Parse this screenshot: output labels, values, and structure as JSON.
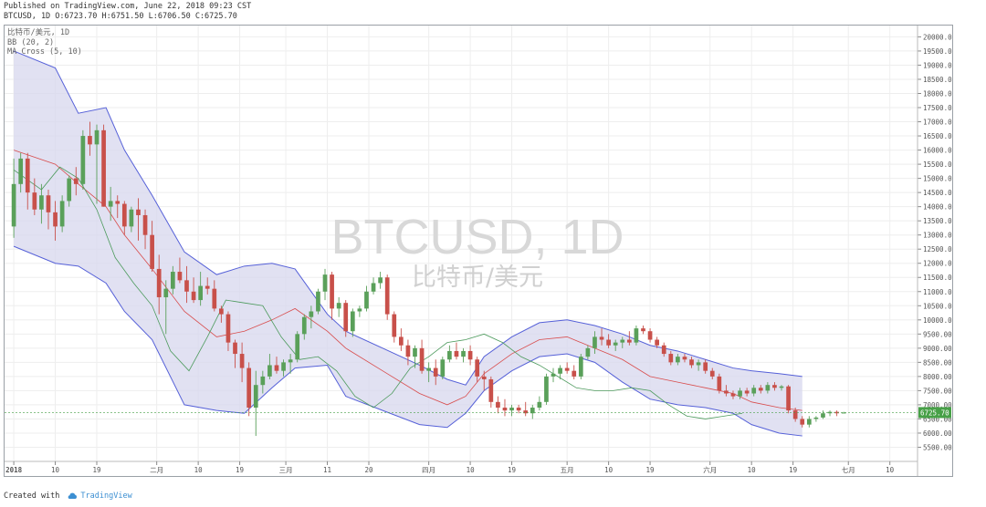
{
  "header": {
    "line1": "Published on TradingView.com, June 22, 2018 09:23 CST",
    "line2": "BTCUSD, 1D O:6723.70 H:6751.50 L:6706.50 C:6725.70"
  },
  "legend": {
    "title": "比特币/美元, 1D",
    "bb": "BB (20, 2)",
    "ma": "MA Cross (5, 10)"
  },
  "watermark": {
    "symbol": "BTCUSD, 1D",
    "name": "比特币/美元"
  },
  "footer": {
    "created_with": "Created with",
    "brand": "TradingView"
  },
  "colors": {
    "up": "#5aa05a",
    "down": "#c8504a",
    "band_fill": "#d7d7ee",
    "band_line": "#5560d8",
    "mid_line": "#d84c4c",
    "ma_fast": "#4c9a5c",
    "last_price": "#47a047"
  },
  "chart_data": {
    "type": "candlestick",
    "y_range": [
      5000,
      20400
    ],
    "y_ticks": [
      5500,
      6000,
      6500,
      7000,
      7500,
      8000,
      8500,
      9000,
      9500,
      10000,
      10500,
      11000,
      11500,
      12000,
      12500,
      13000,
      13500,
      14000,
      14500,
      15000,
      15500,
      16000,
      16500,
      17000,
      17500,
      18000,
      18500,
      19000,
      19500,
      20000
    ],
    "y_tick_labels": [
      "5500.00",
      "6000.00",
      "6500.00",
      "7000.00",
      "7500.00",
      "8000.00",
      "8500.00",
      "9000.00",
      "9500.00",
      "10000.00",
      "10500.00",
      "11000.00",
      "11500.00",
      "12000.00",
      "12500.00",
      "13000.00",
      "13500.00",
      "14000.00",
      "14500.00",
      "15000.00",
      "15500.00",
      "16000.00",
      "16500.00",
      "17000.00",
      "17500.00",
      "18000.00",
      "18500.00",
      "19000.00",
      "19500.00",
      "20000.00"
    ],
    "x_range_days": [
      -2,
      196
    ],
    "x_ticks": [
      {
        "day": 0,
        "label": "2018",
        "bold": true
      },
      {
        "day": 9,
        "label": "10"
      },
      {
        "day": 18,
        "label": "19"
      },
      {
        "day": 31,
        "label": "二月"
      },
      {
        "day": 40,
        "label": "10"
      },
      {
        "day": 49,
        "label": "19"
      },
      {
        "day": 59,
        "label": "三月"
      },
      {
        "day": 68,
        "label": "11"
      },
      {
        "day": 77,
        "label": "20"
      },
      {
        "day": 90,
        "label": "四月"
      },
      {
        "day": 99,
        "label": "10"
      },
      {
        "day": 108,
        "label": "19"
      },
      {
        "day": 120,
        "label": "五月"
      },
      {
        "day": 129,
        "label": "10"
      },
      {
        "day": 138,
        "label": "19"
      },
      {
        "day": 151,
        "label": "六月"
      },
      {
        "day": 160,
        "label": "10"
      },
      {
        "day": 169,
        "label": "19"
      },
      {
        "day": 181,
        "label": "七月"
      },
      {
        "day": 190,
        "label": "10"
      },
      {
        "day": 199,
        "label": "19"
      }
    ],
    "last_price": 6725.7,
    "last_price_label": "6725.70",
    "candles": [
      [
        13300,
        15700,
        12900,
        14800
      ],
      [
        14800,
        15900,
        14500,
        15700
      ],
      [
        15700,
        15900,
        13900,
        14500
      ],
      [
        14500,
        15000,
        13700,
        13900
      ],
      [
        13900,
        14800,
        13400,
        14400
      ],
      [
        14400,
        14600,
        13200,
        13800
      ],
      [
        13800,
        14200,
        12800,
        13300
      ],
      [
        13300,
        14400,
        13100,
        14200
      ],
      [
        14200,
        15100,
        14000,
        15000
      ],
      [
        15000,
        15400,
        14400,
        14800
      ],
      [
        14800,
        16700,
        14600,
        16500
      ],
      [
        16500,
        17000,
        15800,
        16200
      ],
      [
        16200,
        16900,
        14100,
        16700
      ],
      [
        16700,
        16900,
        14000,
        14000
      ],
      [
        14000,
        14700,
        13500,
        14200
      ],
      [
        14200,
        14400,
        13600,
        14100
      ],
      [
        14100,
        14200,
        13000,
        13300
      ],
      [
        13300,
        14000,
        13100,
        13900
      ],
      [
        13900,
        14300,
        12800,
        13700
      ],
      [
        13700,
        13900,
        12500,
        13000
      ],
      [
        13000,
        13500,
        11700,
        11800
      ],
      [
        11800,
        12300,
        10200,
        10800
      ],
      [
        10800,
        11400,
        9500,
        11100
      ],
      [
        11100,
        11900,
        10900,
        11700
      ],
      [
        11700,
        12200,
        11300,
        11400
      ],
      [
        11400,
        11900,
        10600,
        11000
      ],
      [
        11000,
        11500,
        10600,
        10700
      ],
      [
        10700,
        11700,
        10500,
        11200
      ],
      [
        11200,
        11500,
        10900,
        11100
      ],
      [
        11100,
        11400,
        10300,
        10400
      ],
      [
        10400,
        10500,
        9900,
        10200
      ],
      [
        10200,
        10300,
        8900,
        9200
      ],
      [
        9200,
        9300,
        8300,
        8800
      ],
      [
        8800,
        9200,
        7800,
        8300
      ],
      [
        8300,
        8500,
        6600,
        6900
      ],
      [
        6900,
        8200,
        5900,
        7700
      ],
      [
        7700,
        8200,
        7400,
        8000
      ],
      [
        8000,
        8800,
        7900,
        8400
      ],
      [
        8400,
        8700,
        8100,
        8200
      ],
      [
        8200,
        8600,
        8000,
        8500
      ],
      [
        8500,
        8800,
        8100,
        8600
      ],
      [
        8600,
        9600,
        8500,
        9500
      ],
      [
        9500,
        10200,
        9300,
        10100
      ],
      [
        10100,
        10500,
        9700,
        10300
      ],
      [
        10300,
        11100,
        10200,
        11000
      ],
      [
        11000,
        11800,
        10700,
        11600
      ],
      [
        11600,
        11700,
        10000,
        10400
      ],
      [
        10400,
        10800,
        10100,
        10600
      ],
      [
        10600,
        10700,
        9400,
        9600
      ],
      [
        9600,
        10400,
        9400,
        10300
      ],
      [
        10300,
        10500,
        10100,
        10400
      ],
      [
        10400,
        11200,
        10300,
        11000
      ],
      [
        11000,
        11500,
        10900,
        11300
      ],
      [
        11300,
        11700,
        11100,
        11500
      ],
      [
        11500,
        11600,
        10000,
        10200
      ],
      [
        10200,
        10300,
        9200,
        9400
      ],
      [
        9400,
        9700,
        8900,
        9100
      ],
      [
        9100,
        9300,
        8400,
        8700
      ],
      [
        8700,
        9100,
        8300,
        9000
      ],
      [
        9000,
        9300,
        8100,
        8200
      ],
      [
        8200,
        8500,
        7800,
        8300
      ],
      [
        8300,
        8600,
        7700,
        8000
      ],
      [
        8000,
        8700,
        7900,
        8600
      ],
      [
        8600,
        9100,
        8500,
        8900
      ],
      [
        8900,
        9200,
        8600,
        8700
      ],
      [
        8700,
        9000,
        8500,
        8900
      ],
      [
        8900,
        9100,
        8400,
        8600
      ],
      [
        8600,
        8700,
        7800,
        8000
      ],
      [
        8000,
        8200,
        7500,
        7900
      ],
      [
        7900,
        8000,
        6900,
        7100
      ],
      [
        7100,
        7300,
        6700,
        6900
      ],
      [
        6900,
        7200,
        6600,
        6800
      ],
      [
        6800,
        7000,
        6600,
        6900
      ],
      [
        6900,
        7000,
        6700,
        6800
      ],
      [
        6800,
        7100,
        6600,
        6700
      ],
      [
        6700,
        7000,
        6500,
        6900
      ],
      [
        6900,
        7300,
        6800,
        7100
      ],
      [
        7100,
        8100,
        7000,
        8000
      ],
      [
        8000,
        8300,
        7800,
        8100
      ],
      [
        8100,
        8400,
        7900,
        8300
      ],
      [
        8300,
        8500,
        8100,
        8200
      ],
      [
        8200,
        8400,
        7900,
        8000
      ],
      [
        8000,
        8800,
        7900,
        8700
      ],
      [
        8700,
        9100,
        8600,
        9000
      ],
      [
        9000,
        9600,
        8800,
        9400
      ],
      [
        9400,
        9700,
        9100,
        9300
      ],
      [
        9300,
        9500,
        9000,
        9100
      ],
      [
        9100,
        9300,
        8900,
        9200
      ],
      [
        9200,
        9400,
        9000,
        9300
      ],
      [
        9300,
        9600,
        9100,
        9200
      ],
      [
        9200,
        9800,
        9100,
        9700
      ],
      [
        9700,
        9800,
        9500,
        9600
      ],
      [
        9600,
        9700,
        9200,
        9300
      ],
      [
        9300,
        9400,
        9000,
        9100
      ],
      [
        9100,
        9200,
        8700,
        8800
      ],
      [
        8800,
        8900,
        8400,
        8500
      ],
      [
        8500,
        8800,
        8400,
        8700
      ],
      [
        8700,
        8800,
        8500,
        8600
      ],
      [
        8600,
        8700,
        8300,
        8400
      ],
      [
        8400,
        8600,
        8200,
        8500
      ],
      [
        8500,
        8600,
        8100,
        8200
      ],
      [
        8200,
        8300,
        7900,
        8000
      ],
      [
        8000,
        8100,
        7400,
        7500
      ],
      [
        7500,
        7700,
        7300,
        7400
      ],
      [
        7400,
        7500,
        7200,
        7300
      ],
      [
        7300,
        7600,
        7200,
        7500
      ],
      [
        7500,
        7600,
        7300,
        7400
      ],
      [
        7400,
        7700,
        7300,
        7600
      ],
      [
        7600,
        7700,
        7400,
        7500
      ],
      [
        7500,
        7800,
        7400,
        7700
      ],
      [
        7700,
        7800,
        7500,
        7600
      ],
      [
        7600,
        7700,
        7500,
        7650
      ],
      [
        7650,
        7700,
        6700,
        6800
      ],
      [
        6800,
        6900,
        6400,
        6500
      ],
      [
        6500,
        6600,
        6200,
        6300
      ],
      [
        6300,
        6600,
        6200,
        6500
      ],
      [
        6500,
        6600,
        6400,
        6550
      ],
      [
        6550,
        6800,
        6500,
        6700
      ],
      [
        6700,
        6800,
        6600,
        6750
      ],
      [
        6750,
        6800,
        6600,
        6700
      ],
      [
        6723,
        6751,
        6706,
        6725
      ]
    ],
    "candle_x_start": 0,
    "candle_x_step": 1.5,
    "bb_upper": [
      [
        0,
        19500
      ],
      [
        9,
        18900
      ],
      [
        14,
        17300
      ],
      [
        20,
        17500
      ],
      [
        24,
        16000
      ],
      [
        30,
        14400
      ],
      [
        37,
        12400
      ],
      [
        44,
        11600
      ],
      [
        50,
        11900
      ],
      [
        56,
        12000
      ],
      [
        61,
        11800
      ],
      [
        68,
        10200
      ],
      [
        72,
        9600
      ],
      [
        80,
        9000
      ],
      [
        88,
        8400
      ],
      [
        94,
        7900
      ],
      [
        98,
        7700
      ],
      [
        102,
        8700
      ],
      [
        108,
        9400
      ],
      [
        114,
        9900
      ],
      [
        120,
        10000
      ],
      [
        126,
        9800
      ],
      [
        132,
        9500
      ],
      [
        138,
        9100
      ],
      [
        144,
        8900
      ],
      [
        150,
        8600
      ],
      [
        156,
        8300
      ],
      [
        160,
        8200
      ],
      [
        166,
        8100
      ],
      [
        171,
        8000
      ]
    ],
    "bb_lower": [
      [
        0,
        12600
      ],
      [
        9,
        12000
      ],
      [
        14,
        11900
      ],
      [
        20,
        11300
      ],
      [
        24,
        10300
      ],
      [
        30,
        9300
      ],
      [
        37,
        7000
      ],
      [
        44,
        6800
      ],
      [
        50,
        6700
      ],
      [
        56,
        7600
      ],
      [
        61,
        8300
      ],
      [
        68,
        8400
      ],
      [
        72,
        7300
      ],
      [
        80,
        6800
      ],
      [
        88,
        6300
      ],
      [
        94,
        6200
      ],
      [
        98,
        6700
      ],
      [
        102,
        7500
      ],
      [
        108,
        8200
      ],
      [
        114,
        8700
      ],
      [
        120,
        8800
      ],
      [
        126,
        8500
      ],
      [
        132,
        7800
      ],
      [
        138,
        7200
      ],
      [
        144,
        7000
      ],
      [
        150,
        6900
      ],
      [
        156,
        6700
      ],
      [
        160,
        6300
      ],
      [
        166,
        6000
      ],
      [
        171,
        5900
      ]
    ],
    "bb_middle": [
      [
        0,
        16000
      ],
      [
        9,
        15500
      ],
      [
        14,
        14800
      ],
      [
        20,
        14000
      ],
      [
        24,
        13000
      ],
      [
        30,
        11800
      ],
      [
        37,
        10300
      ],
      [
        44,
        9400
      ],
      [
        50,
        9600
      ],
      [
        56,
        10000
      ],
      [
        61,
        10400
      ],
      [
        68,
        9600
      ],
      [
        72,
        9000
      ],
      [
        80,
        8200
      ],
      [
        88,
        7400
      ],
      [
        94,
        7000
      ],
      [
        98,
        7300
      ],
      [
        102,
        8100
      ],
      [
        108,
        8800
      ],
      [
        114,
        9300
      ],
      [
        120,
        9400
      ],
      [
        126,
        9000
      ],
      [
        132,
        8600
      ],
      [
        138,
        8000
      ],
      [
        144,
        7800
      ],
      [
        150,
        7600
      ],
      [
        156,
        7400
      ],
      [
        160,
        7100
      ],
      [
        166,
        6900
      ],
      [
        171,
        6800
      ]
    ],
    "ma_fast": [
      [
        0,
        15300
      ],
      [
        6,
        14600
      ],
      [
        10,
        15400
      ],
      [
        14,
        15000
      ],
      [
        18,
        13900
      ],
      [
        22,
        12200
      ],
      [
        26,
        11300
      ],
      [
        30,
        10500
      ],
      [
        34,
        8900
      ],
      [
        38,
        8200
      ],
      [
        42,
        9400
      ],
      [
        46,
        10700
      ],
      [
        50,
        10600
      ],
      [
        54,
        10500
      ],
      [
        58,
        9400
      ],
      [
        62,
        8600
      ],
      [
        66,
        8700
      ],
      [
        70,
        8200
      ],
      [
        74,
        7300
      ],
      [
        78,
        6900
      ],
      [
        82,
        7400
      ],
      [
        86,
        8300
      ],
      [
        90,
        8700
      ],
      [
        94,
        9200
      ],
      [
        98,
        9300
      ],
      [
        102,
        9500
      ],
      [
        106,
        9200
      ],
      [
        110,
        8700
      ],
      [
        114,
        8400
      ],
      [
        118,
        8000
      ],
      [
        122,
        7600
      ],
      [
        126,
        7500
      ],
      [
        130,
        7500
      ],
      [
        134,
        7600
      ],
      [
        138,
        7500
      ],
      [
        142,
        7000
      ],
      [
        146,
        6600
      ],
      [
        150,
        6500
      ],
      [
        154,
        6600
      ],
      [
        158,
        6700
      ]
    ]
  }
}
